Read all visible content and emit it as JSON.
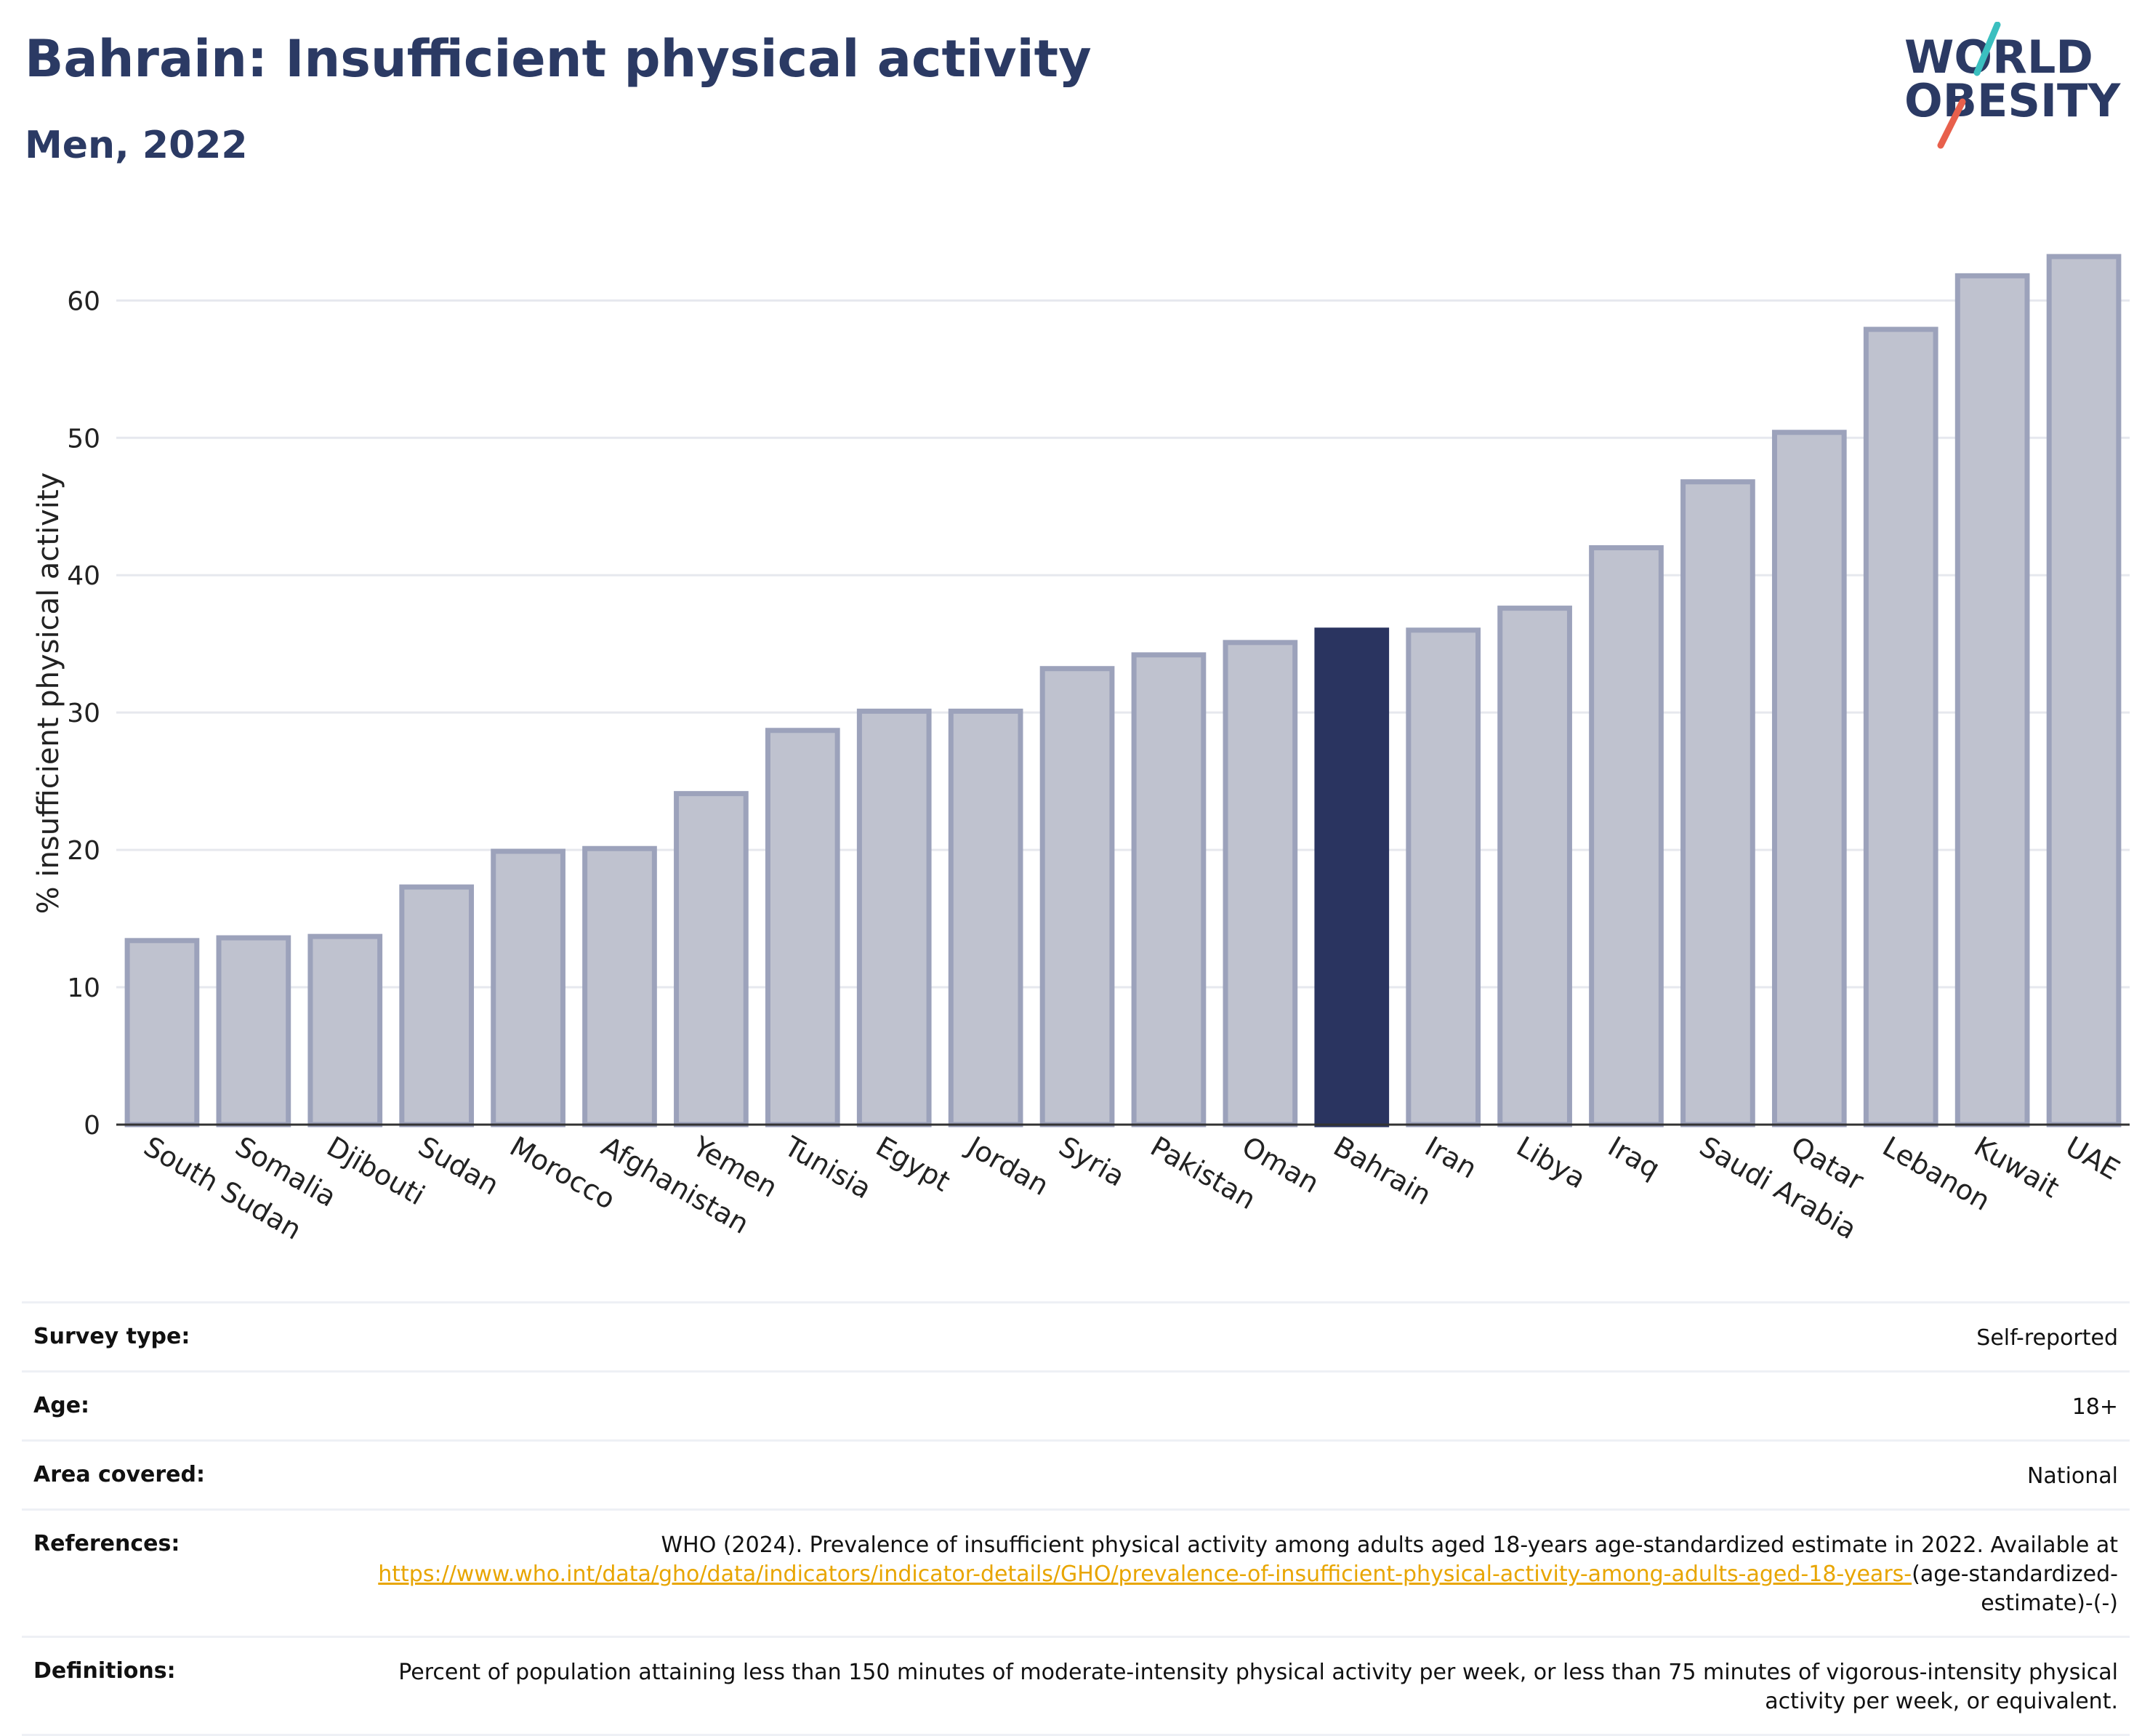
{
  "title": "Bahrain: Insufficient physical activity",
  "subtitle": "Men, 2022",
  "logo": {
    "line1": "WORLD",
    "line2": "OBESITY",
    "accent_teal": "#3bbfbf",
    "accent_red": "#e8604c",
    "text_color": "#2b3a64"
  },
  "colors": {
    "bar": "#bfc2cf",
    "bar_border": "#9ca2bb",
    "highlight": "#2a3460",
    "grid": "#e6e8ee",
    "link": "#e8a500"
  },
  "chart_data": {
    "type": "bar",
    "categories": [
      "South Sudan",
      "Somalia",
      "Djibouti",
      "Sudan",
      "Morocco",
      "Afghanistan",
      "Yemen",
      "Tunisia",
      "Egypt",
      "Jordan",
      "Syria",
      "Pakistan",
      "Oman",
      "Bahrain",
      "Iran",
      "Libya",
      "Iraq",
      "Saudi Arabia",
      "Qatar",
      "Lebanon",
      "Kuwait",
      "UAE"
    ],
    "values": [
      13.4,
      13.6,
      13.7,
      17.3,
      19.9,
      20.1,
      24.1,
      28.7,
      30.1,
      30.1,
      33.2,
      34.2,
      35.1,
      36.0,
      36.0,
      37.6,
      42.0,
      46.8,
      50.4,
      57.9,
      61.8,
      63.2
    ],
    "highlight": "Bahrain",
    "title": "Bahrain: Insufficient physical activity",
    "subtitle": "Men, 2022",
    "xlabel": "",
    "ylabel": "% insufficient physical activity",
    "ylim": [
      0,
      66
    ],
    "yticks": [
      0,
      10,
      20,
      30,
      40,
      50,
      60
    ],
    "grid": true
  },
  "info": {
    "survey_type": {
      "label": "Survey type:",
      "value": "Self-reported"
    },
    "age": {
      "label": "Age:",
      "value": "18+"
    },
    "area": {
      "label": "Area covered:",
      "value": "National"
    },
    "references": {
      "label": "References:",
      "text_before": "WHO (2024). Prevalence of insufficient physical activity among adults aged 18-years age-standardized estimate in 2022. Available at",
      "link": "https://www.who.int/data/gho/data/indicators/indicator-details/GHO/prevalence-of-insufficient-physical-activity-among-adults-aged-18-years-",
      "text_after": "(age-standardized-estimate)-(-)"
    },
    "definitions": {
      "label": "Definitions:",
      "value": "Percent of population attaining less than 150 minutes of moderate-intensity physical activity per week, or less than 75 minutes of vigorous-intensity physical activity per week, or equivalent."
    }
  }
}
